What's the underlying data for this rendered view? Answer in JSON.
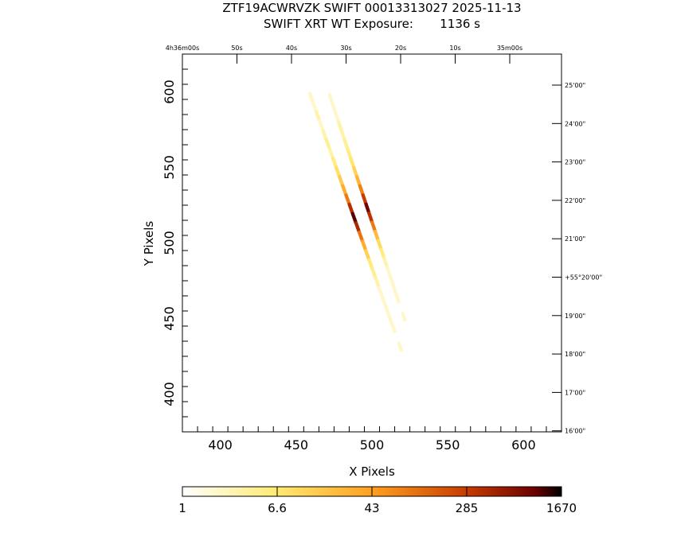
{
  "chart_data": {
    "type": "heatmap",
    "title": "ZTF19ACWRVZK SWIFT 00013313027 2025-11-13",
    "subtitle": "SWIFT XRT WT Exposure:       1136 s",
    "xlabel": "X Pixels",
    "ylabel": "Y Pixels",
    "xlim": [
      375,
      625
    ],
    "ylim": [
      375,
      625
    ],
    "x_ticks": [
      400,
      450,
      500,
      550,
      600
    ],
    "y_ticks": [
      400,
      450,
      500,
      550,
      600
    ],
    "ra_ticks": [
      "4h36m00s",
      "50s",
      "40s",
      "30s",
      "20s",
      "10s",
      "35m00s"
    ],
    "dec_ticks": [
      "25'00\"",
      "24'00\"",
      "23'00\"",
      "22'00\"",
      "21'00\"",
      "+55°20'00\"",
      "19'00\"",
      "18'00\"",
      "17'00\"",
      "16'00\""
    ],
    "colorbar": {
      "tick_labels": [
        "1",
        "6.6",
        "43",
        "285",
        "1670"
      ],
      "scale": "log",
      "min": 1,
      "max": 1670
    },
    "streaks": [
      {
        "from": [
          459,
          599
        ],
        "to": [
          524,
          416
        ],
        "counts": [
          2,
          2,
          3,
          2,
          3,
          4,
          3,
          5,
          8,
          14,
          30,
          80,
          350,
          1100,
          400,
          90,
          30,
          12,
          6,
          4,
          3,
          2,
          2,
          2,
          2,
          2,
          1,
          2,
          1,
          1
        ]
      },
      {
        "from": [
          472,
          598
        ],
        "to": [
          532,
          418
        ],
        "counts": [
          2,
          2,
          2,
          3,
          3,
          4,
          5,
          7,
          12,
          25,
          70,
          260,
          900,
          320,
          80,
          22,
          9,
          5,
          3,
          2,
          2,
          2,
          2,
          1,
          2,
          1,
          1,
          1,
          1,
          1
        ]
      }
    ]
  }
}
